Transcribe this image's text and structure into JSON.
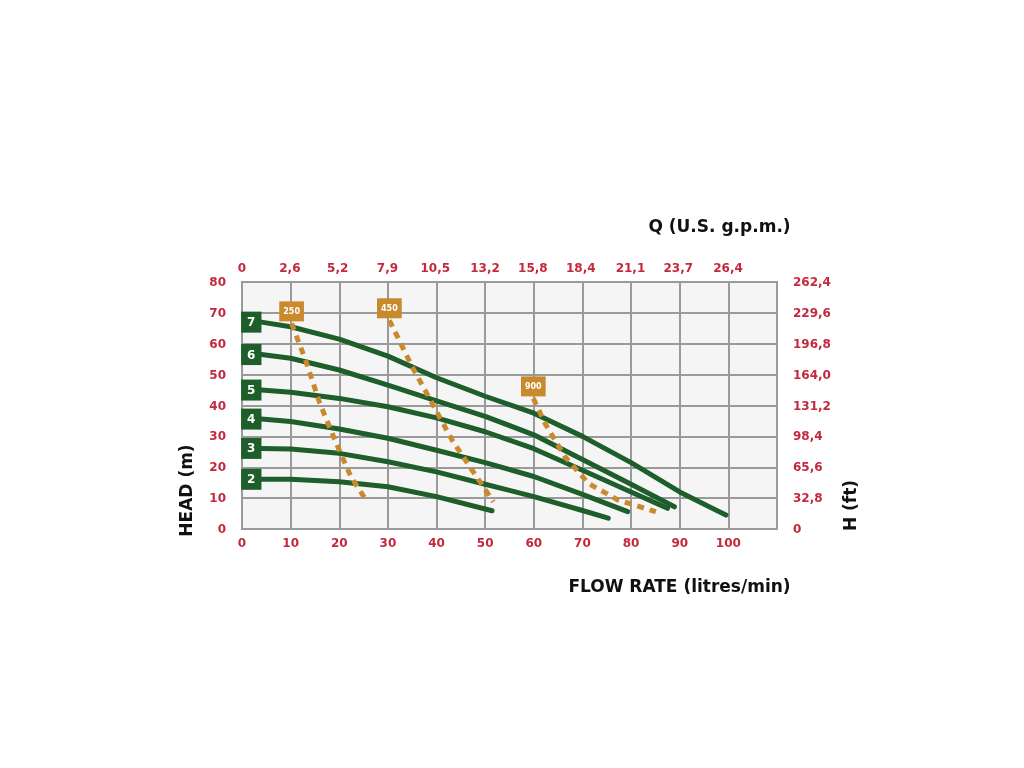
{
  "chart_data": {
    "type": "line",
    "xlabel": "FLOW RATE (litres/min)",
    "ylabel": "HEAD (m)",
    "y2label": "H (ft)",
    "x2label": "Q (U.S. g.p.m.)",
    "xlim": [
      0,
      110
    ],
    "xticks": [
      0,
      10,
      20,
      30,
      40,
      50,
      60,
      70,
      80,
      90,
      100
    ],
    "ylim": [
      0,
      80
    ],
    "yticks": [
      0,
      10,
      20,
      30,
      40,
      50,
      60,
      70,
      80
    ],
    "x2lim": [
      0,
      29.06
    ],
    "x2ticks": [
      0,
      {
        "value": 2.6,
        "label": "2,6"
      },
      {
        "value": 5.2,
        "label": "5,2"
      },
      {
        "value": 7.9,
        "label": "7,9"
      },
      {
        "value": 10.5,
        "label": "10,5"
      },
      {
        "value": 13.2,
        "label": "13,2"
      },
      {
        "value": 15.8,
        "label": "15,8"
      },
      {
        "value": 18.4,
        "label": "18,4"
      },
      {
        "value": 21.1,
        "label": "21,1"
      },
      {
        "value": 23.7,
        "label": "23,7"
      },
      {
        "value": 26.4,
        "label": "26,4"
      }
    ],
    "y2lim": [
      0,
      262.4
    ],
    "y2ticks": [
      0,
      {
        "value": 32.8,
        "label": "32,8"
      },
      {
        "value": 65.6,
        "label": "65,6"
      },
      {
        "value": 98.4,
        "label": "98,4"
      },
      {
        "value": 131.2,
        "label": "131,2"
      },
      {
        "value": 164,
        "label": "164,0"
      },
      {
        "value": 196.8,
        "label": "196,8"
      },
      {
        "value": 229.6,
        "label": "229,6"
      },
      {
        "value": 262.4,
        "label": "262,4"
      }
    ],
    "grid": true,
    "legend": "left",
    "marker": "none",
    "series": [
      {
        "name": "7",
        "color": "#1d5e2b",
        "line_style": "solid",
        "x": [
          4,
          10,
          20,
          30,
          40,
          50,
          60,
          70,
          80,
          90,
          99.5
        ],
        "values": [
          67,
          65.5,
          61.5,
          56,
          49,
          43,
          37.5,
          30,
          21.5,
          12,
          4.5
        ]
      },
      {
        "name": "6",
        "color": "#1d5e2b",
        "line_style": "solid",
        "x": [
          4,
          10,
          20,
          30,
          40,
          50,
          60,
          70,
          80,
          88.9
        ],
        "values": [
          56.5,
          55.3,
          51.5,
          46.6,
          41.5,
          36.5,
          30.5,
          22.5,
          14.5,
          7.2
        ]
      },
      {
        "name": "5",
        "color": "#1d5e2b",
        "line_style": "solid",
        "x": [
          4,
          10,
          20,
          30,
          40,
          50,
          60,
          70,
          80,
          87.5
        ],
        "values": [
          45,
          44.3,
          42.3,
          39.6,
          36,
          31.5,
          26,
          19,
          12,
          6.7
        ]
      },
      {
        "name": "4",
        "color": "#1d5e2b",
        "line_style": "solid",
        "x": [
          4,
          10,
          20,
          30,
          40,
          50,
          60,
          70,
          79.3
        ],
        "values": [
          35.6,
          34.8,
          32.4,
          29.4,
          25.5,
          21.5,
          17,
          11.2,
          5.6
        ]
      },
      {
        "name": "3",
        "color": "#1d5e2b",
        "line_style": "solid",
        "x": [
          4,
          10,
          20,
          30,
          40,
          50,
          60,
          70,
          75.3
        ],
        "values": [
          26.1,
          25.9,
          24.5,
          21.8,
          18.5,
          14.5,
          10.5,
          6,
          3.5
        ]
      },
      {
        "name": "2",
        "color": "#1d5e2b",
        "line_style": "solid",
        "x": [
          4,
          10,
          20,
          30,
          40,
          51.4
        ],
        "values": [
          16.1,
          16.1,
          15.3,
          13.7,
          10.5,
          5.9
        ]
      },
      {
        "name": "250",
        "color": "#c98a2e",
        "line_style": "dashed",
        "x": [
          10.2,
          13.2,
          16,
          19.4,
          22.4,
          25.5
        ],
        "values": [
          66.6,
          54.1,
          40.7,
          27.7,
          16.9,
          9.4
        ]
      },
      {
        "name": "450",
        "color": "#c98a2e",
        "line_style": "dashed",
        "x": [
          30.3,
          35,
          39.1,
          43.2,
          47.3,
          51.7
        ],
        "values": [
          67.6,
          52.5,
          40.7,
          28.8,
          19.1,
          8.8
        ]
      },
      {
        "name": "900",
        "color": "#c98a2e",
        "line_style": "dashed",
        "x": [
          59.9,
          62.3,
          66.4,
          71.2,
          77.3,
          85.1
        ],
        "values": [
          42.3,
          34.2,
          23.4,
          14.8,
          9.4,
          5.6
        ]
      }
    ]
  }
}
